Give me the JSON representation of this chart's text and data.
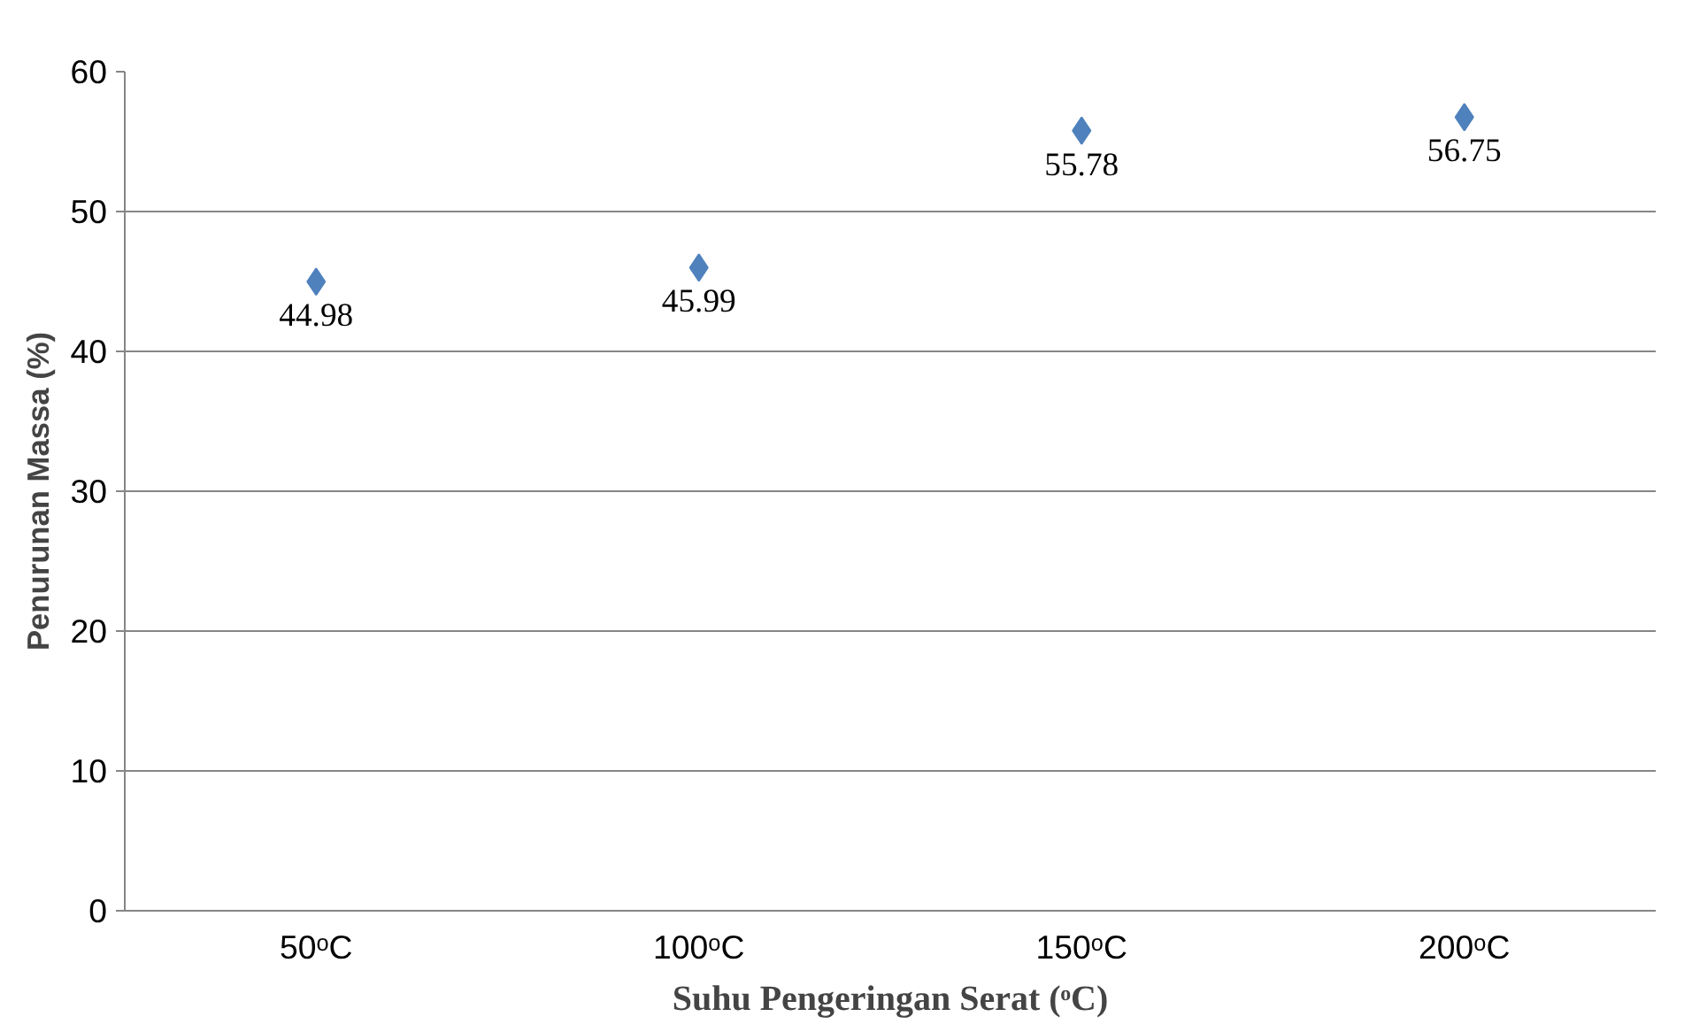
{
  "chart_data": {
    "type": "scatter",
    "xlabel": "Suhu Pengeringan Serat (ᵒC)",
    "ylabel": "Penurunan Massa (%)",
    "categories": [
      "50ᵒC",
      "100ᵒC",
      "150ᵒC",
      "200ᵒC"
    ],
    "values": [
      44.98,
      45.99,
      55.78,
      56.75
    ],
    "color": "#4f81bd",
    "marker": "diamond",
    "ylim": [
      0,
      60
    ],
    "yticks": [
      0,
      10,
      20,
      30,
      40,
      50,
      60
    ],
    "grid": "y",
    "data_labels": true
  }
}
